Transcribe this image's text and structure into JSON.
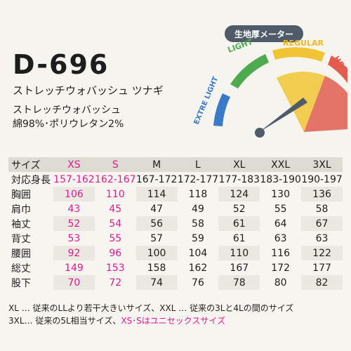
{
  "product": {
    "code": "D-696",
    "name": "ストレッチウォバッシュ ツナギ",
    "fabric": "ストレッチウォバッシュ",
    "composition": "綿98%･ポリウレタン2%"
  },
  "meter": {
    "title": "生地厚メーター",
    "labels": [
      "EXTRE LIGHT",
      "LIGHT",
      "REGULAR",
      "HEAVY"
    ],
    "colors": {
      "extra_light": "#3b79c9",
      "light": "#4daa4f",
      "regular": "#f1c433",
      "heavy": "#e25d50",
      "title_bg": "#4f5b68",
      "needle": "#4f5b68"
    },
    "level": "REGULAR"
  },
  "table": {
    "headers": [
      "サイズ",
      "XS",
      "S",
      "M",
      "L",
      "XL",
      "XXL",
      "3XL"
    ],
    "rows": [
      [
        "対応身長",
        "157-162",
        "162-167",
        "167-172",
        "172-177",
        "177-183",
        "183-190",
        "190-197"
      ],
      [
        "胸囲",
        "106",
        "110",
        "114",
        "118",
        "124",
        "130",
        "136"
      ],
      [
        "肩巾",
        "43",
        "45",
        "47",
        "49",
        "52",
        "55",
        "58"
      ],
      [
        "袖丈",
        "52",
        "54",
        "56",
        "58",
        "61",
        "64",
        "67"
      ],
      [
        "背丈",
        "53",
        "55",
        "57",
        "59",
        "61",
        "63",
        "63"
      ],
      [
        "腰囲",
        "92",
        "96",
        "100",
        "104",
        "110",
        "116",
        "122"
      ],
      [
        "総丈",
        "149",
        "153",
        "158",
        "162",
        "167",
        "172",
        "177"
      ],
      [
        "股下",
        "70",
        "72",
        "74",
        "76",
        "78",
        "80",
        "82"
      ]
    ],
    "highlight_color": "#e3188f"
  },
  "notes": {
    "line1": "XL … 従来のLLより若干大きいサイズ、XXL … 従来の3Lと4Lの間のサイズ",
    "line2_prefix": "3XL… 従来の5L相当サイズ、",
    "line2_highlight": "XS･Sはユニセックスサイズ"
  }
}
